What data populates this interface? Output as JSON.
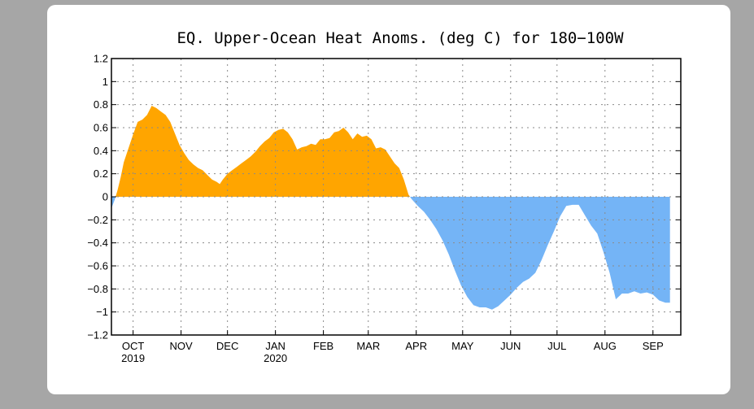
{
  "chart_data": {
    "type": "area",
    "title": "EQ. Upper-Ocean Heat Anoms. (deg C) for 180−100W",
    "xlabel": "",
    "ylabel": "",
    "ylim": [
      -1.2,
      1.2
    ],
    "yticks": [
      {
        "value": 1.2,
        "label": "1.2"
      },
      {
        "value": 1.0,
        "label": "1"
      },
      {
        "value": 0.8,
        "label": "0.8"
      },
      {
        "value": 0.6,
        "label": "0.6"
      },
      {
        "value": 0.4,
        "label": "0.4"
      },
      {
        "value": 0.2,
        "label": "0.2"
      },
      {
        "value": 0.0,
        "label": "0"
      },
      {
        "value": -0.2,
        "label": "−0.2"
      },
      {
        "value": -0.4,
        "label": "−0.4"
      },
      {
        "value": -0.6,
        "label": "−0.6"
      },
      {
        "value": -0.8,
        "label": "−0.8"
      },
      {
        "value": -1.0,
        "label": "−1"
      },
      {
        "value": -1.2,
        "label": "−1.2"
      }
    ],
    "xlim": [
      "2019-09-17",
      "2020-09-19"
    ],
    "xticks": [
      {
        "date": "2019-10-01",
        "label": "OCT",
        "sublabel": "2019"
      },
      {
        "date": "2019-11-01",
        "label": "NOV",
        "sublabel": ""
      },
      {
        "date": "2019-12-01",
        "label": "DEC",
        "sublabel": ""
      },
      {
        "date": "2020-01-01",
        "label": "JAN",
        "sublabel": "2020"
      },
      {
        "date": "2020-02-01",
        "label": "FEB",
        "sublabel": ""
      },
      {
        "date": "2020-03-01",
        "label": "MAR",
        "sublabel": ""
      },
      {
        "date": "2020-04-01",
        "label": "APR",
        "sublabel": ""
      },
      {
        "date": "2020-05-01",
        "label": "MAY",
        "sublabel": ""
      },
      {
        "date": "2020-06-01",
        "label": "JUN",
        "sublabel": ""
      },
      {
        "date": "2020-07-01",
        "label": "JUL",
        "sublabel": ""
      },
      {
        "date": "2020-08-01",
        "label": "AUG",
        "sublabel": ""
      },
      {
        "date": "2020-09-01",
        "label": "SEP",
        "sublabel": ""
      }
    ],
    "grid": true,
    "positive_color": "#ffa500",
    "negative_color": "#74b4f6",
    "series": [
      {
        "points": [
          [
            "2019-09-17",
            -0.1
          ],
          [
            "2019-09-19",
            -0.03
          ],
          [
            "2019-09-21",
            0.06
          ],
          [
            "2019-09-23",
            0.17
          ],
          [
            "2019-09-25",
            0.3
          ],
          [
            "2019-09-28",
            0.42
          ],
          [
            "2019-10-01",
            0.54
          ],
          [
            "2019-10-04",
            0.65
          ],
          [
            "2019-10-07",
            0.67
          ],
          [
            "2019-10-10",
            0.71
          ],
          [
            "2019-10-13",
            0.79
          ],
          [
            "2019-10-16",
            0.77
          ],
          [
            "2019-10-19",
            0.74
          ],
          [
            "2019-10-22",
            0.71
          ],
          [
            "2019-10-25",
            0.65
          ],
          [
            "2019-10-28",
            0.55
          ],
          [
            "2019-10-31",
            0.45
          ],
          [
            "2019-11-03",
            0.38
          ],
          [
            "2019-11-06",
            0.32
          ],
          [
            "2019-11-09",
            0.28
          ],
          [
            "2019-11-12",
            0.25
          ],
          [
            "2019-11-15",
            0.23
          ],
          [
            "2019-11-18",
            0.19
          ],
          [
            "2019-11-21",
            0.15
          ],
          [
            "2019-11-24",
            0.13
          ],
          [
            "2019-11-26",
            0.11
          ],
          [
            "2019-11-28",
            0.15
          ],
          [
            "2019-12-01",
            0.2
          ],
          [
            "2019-12-04",
            0.23
          ],
          [
            "2019-12-07",
            0.26
          ],
          [
            "2019-12-10",
            0.29
          ],
          [
            "2019-12-13",
            0.32
          ],
          [
            "2019-12-16",
            0.35
          ],
          [
            "2019-12-19",
            0.39
          ],
          [
            "2019-12-22",
            0.44
          ],
          [
            "2019-12-25",
            0.48
          ],
          [
            "2019-12-28",
            0.51
          ],
          [
            "2019-12-31",
            0.56
          ],
          [
            "2020-01-03",
            0.58
          ],
          [
            "2020-01-06",
            0.59
          ],
          [
            "2020-01-09",
            0.56
          ],
          [
            "2020-01-12",
            0.5
          ],
          [
            "2020-01-15",
            0.41
          ],
          [
            "2020-01-18",
            0.43
          ],
          [
            "2020-01-21",
            0.44
          ],
          [
            "2020-01-24",
            0.46
          ],
          [
            "2020-01-27",
            0.45
          ],
          [
            "2020-01-30",
            0.5
          ],
          [
            "2020-02-02",
            0.5
          ],
          [
            "2020-02-05",
            0.51
          ],
          [
            "2020-02-08",
            0.56
          ],
          [
            "2020-02-11",
            0.57
          ],
          [
            "2020-02-14",
            0.6
          ],
          [
            "2020-02-17",
            0.56
          ],
          [
            "2020-02-20",
            0.5
          ],
          [
            "2020-02-23",
            0.55
          ],
          [
            "2020-02-26",
            0.52
          ],
          [
            "2020-02-29",
            0.53
          ],
          [
            "2020-03-03",
            0.5
          ],
          [
            "2020-03-06",
            0.42
          ],
          [
            "2020-03-09",
            0.43
          ],
          [
            "2020-03-12",
            0.41
          ],
          [
            "2020-03-15",
            0.35
          ],
          [
            "2020-03-18",
            0.29
          ],
          [
            "2020-03-21",
            0.25
          ],
          [
            "2020-03-24",
            0.15
          ],
          [
            "2020-03-27",
            0.02
          ],
          [
            "2020-03-29",
            -0.02
          ],
          [
            "2020-04-02",
            -0.08
          ],
          [
            "2020-04-06",
            -0.13
          ],
          [
            "2020-04-10",
            -0.2
          ],
          [
            "2020-04-14",
            -0.28
          ],
          [
            "2020-04-18",
            -0.38
          ],
          [
            "2020-04-22",
            -0.5
          ],
          [
            "2020-04-26",
            -0.64
          ],
          [
            "2020-04-30",
            -0.77
          ],
          [
            "2020-05-04",
            -0.87
          ],
          [
            "2020-05-08",
            -0.94
          ],
          [
            "2020-05-12",
            -0.96
          ],
          [
            "2020-05-16",
            -0.96
          ],
          [
            "2020-05-20",
            -0.98
          ],
          [
            "2020-05-24",
            -0.95
          ],
          [
            "2020-05-28",
            -0.9
          ],
          [
            "2020-06-01",
            -0.85
          ],
          [
            "2020-06-05",
            -0.79
          ],
          [
            "2020-06-09",
            -0.74
          ],
          [
            "2020-06-13",
            -0.71
          ],
          [
            "2020-06-17",
            -0.66
          ],
          [
            "2020-06-21",
            -0.55
          ],
          [
            "2020-06-25",
            -0.42
          ],
          [
            "2020-06-29",
            -0.3
          ],
          [
            "2020-07-03",
            -0.17
          ],
          [
            "2020-07-07",
            -0.08
          ],
          [
            "2020-07-11",
            -0.07
          ],
          [
            "2020-07-15",
            -0.07
          ],
          [
            "2020-07-19",
            -0.16
          ],
          [
            "2020-07-23",
            -0.25
          ],
          [
            "2020-07-27",
            -0.32
          ],
          [
            "2020-07-31",
            -0.48
          ],
          [
            "2020-08-04",
            -0.66
          ],
          [
            "2020-08-08",
            -0.89
          ],
          [
            "2020-08-12",
            -0.84
          ],
          [
            "2020-08-16",
            -0.84
          ],
          [
            "2020-08-20",
            -0.82
          ],
          [
            "2020-08-24",
            -0.84
          ],
          [
            "2020-08-28",
            -0.83
          ],
          [
            "2020-09-01",
            -0.85
          ],
          [
            "2020-09-05",
            -0.9
          ],
          [
            "2020-09-09",
            -0.92
          ],
          [
            "2020-09-12",
            -0.92
          ]
        ]
      }
    ]
  }
}
